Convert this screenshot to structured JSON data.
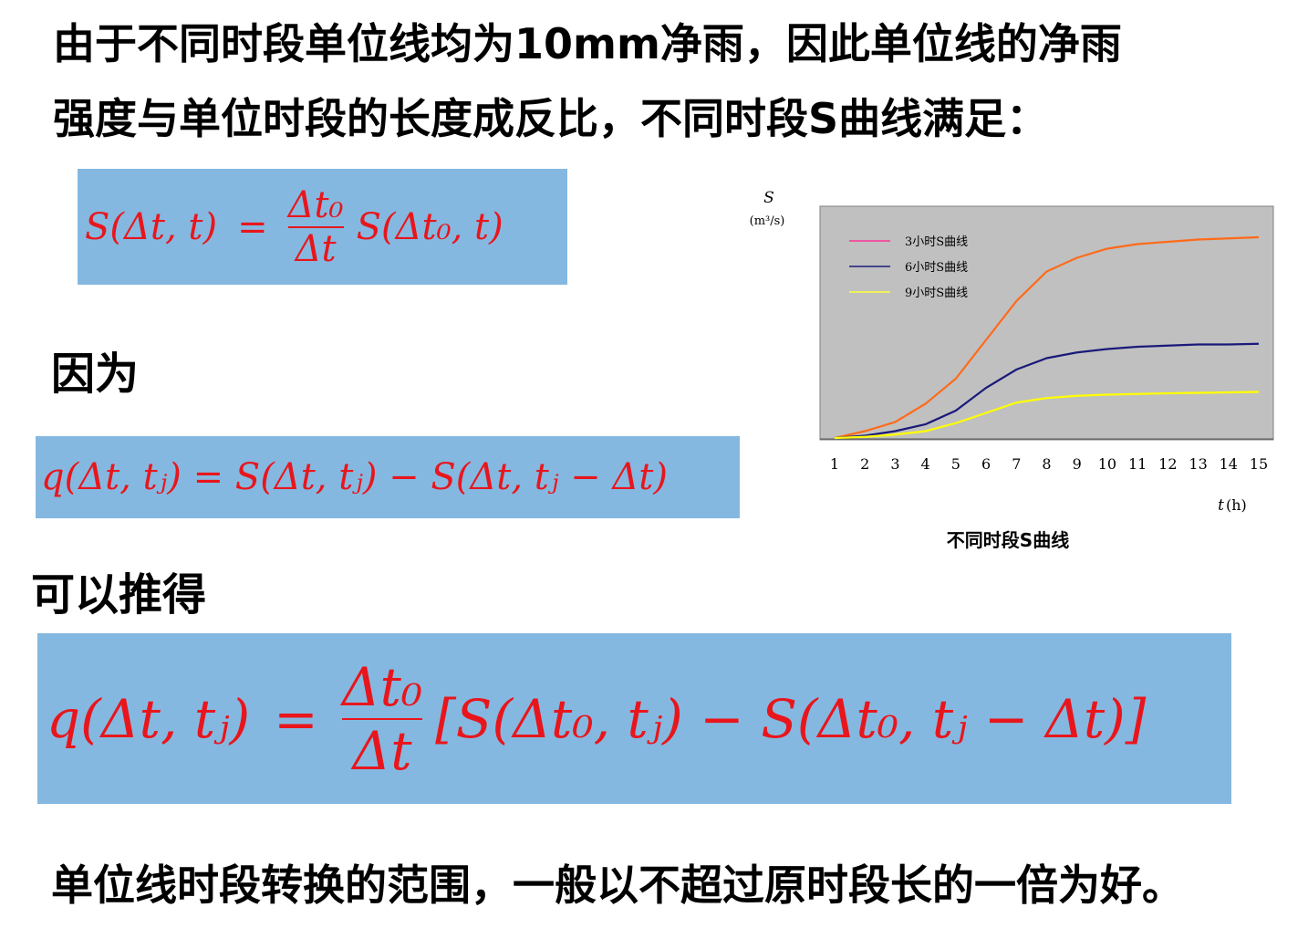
{
  "intro": {
    "line1": "由于不同时段单位线均为10mm净雨，因此单位线的净雨",
    "line2": "强度与单位时段的长度成反比，不同时段S曲线满足："
  },
  "heading_because": "因为",
  "heading_derive": "可以推得",
  "conclusion": "单位线时段转换的范围，一般以不超过原时段长的一倍为好。",
  "formulas": {
    "f1": {
      "lhs": "S(Δt, t)",
      "eq": "=",
      "num": "Δt₀",
      "den": "Δt",
      "rhs": "S(Δt₀, t)"
    },
    "f2": {
      "text": "q(Δt, tⱼ) = S(Δt, tⱼ) − S(Δt, tⱼ − Δt)"
    },
    "f3": {
      "lhs": "q(Δt, tⱼ)",
      "eq": "=",
      "num": "Δt₀",
      "den": "Δt",
      "rhs": "[S(Δt₀, tⱼ) − S(Δt₀, tⱼ − Δt)]"
    }
  },
  "chart_caption": "不同时段S曲线",
  "chart_data": {
    "type": "line",
    "ylabel": "S",
    "yunit": "(m³/s)",
    "xlabel": "t",
    "xunit": "(h)",
    "x": [
      1,
      2,
      3,
      4,
      5,
      6,
      7,
      8,
      9,
      10,
      11,
      12,
      13,
      14,
      15
    ],
    "ylim": [
      0,
      100
    ],
    "grid": false,
    "legend_position": "top-left",
    "background": "#c0c0c0",
    "series": [
      {
        "name": "3小时S曲线",
        "legend_color": "#ff3399",
        "color": "#ff6a1a",
        "values": [
          0,
          3,
          7,
          15,
          26,
          43,
          60,
          73,
          79,
          83,
          85,
          86,
          87,
          87.5,
          88
        ]
      },
      {
        "name": "6小时S曲线",
        "legend_color": "#1a1a7a",
        "color": "#1a1a7a",
        "values": [
          0,
          1,
          3,
          6,
          12,
          22,
          30,
          35,
          37.5,
          39,
          40,
          40.5,
          41,
          41,
          41.3
        ]
      },
      {
        "name": "9小时S曲线",
        "legend_color": "#ffff33",
        "color": "#ffff00",
        "values": [
          0,
          0.5,
          1.5,
          3,
          6.5,
          11,
          15.5,
          17.5,
          18.5,
          19,
          19.3,
          19.6,
          19.8,
          20,
          20.2
        ]
      }
    ]
  }
}
